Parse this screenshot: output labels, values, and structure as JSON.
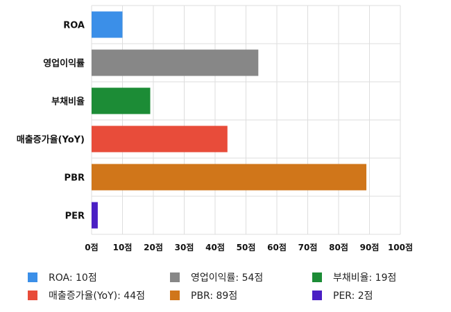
{
  "chart_data": {
    "type": "bar",
    "orientation": "horizontal",
    "categories": [
      "ROA",
      "영업이익률",
      "부채비율",
      "매출증가율(YoY)",
      "PBR",
      "PER"
    ],
    "values": [
      10,
      54,
      19,
      44,
      89,
      2
    ],
    "colors": [
      "#3b8fe8",
      "#878787",
      "#1c8c36",
      "#e84c3a",
      "#d0761a",
      "#4a1fc4"
    ],
    "xlim": [
      0,
      100
    ],
    "xticks": [
      "0점",
      "10점",
      "20점",
      "30점",
      "40점",
      "50점",
      "60점",
      "70점",
      "80점",
      "90점",
      "100점"
    ],
    "grid": true,
    "legend_position": "bottom",
    "legend": [
      "ROA: 10점",
      "영업이익률: 54점",
      "부채비율: 19점",
      "매출증가율(YoY): 44점",
      "PBR: 89점",
      "PER: 2점"
    ]
  }
}
